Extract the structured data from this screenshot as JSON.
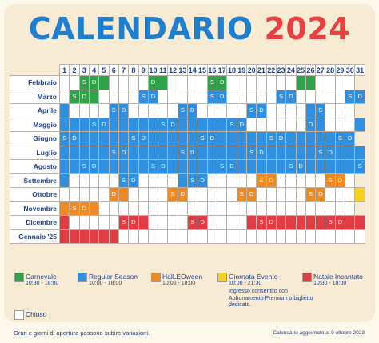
{
  "title": {
    "word": "CALENDARIO",
    "year": "2024"
  },
  "days": [
    "1",
    "2",
    "3",
    "4",
    "5",
    "6",
    "7",
    "8",
    "9",
    "10",
    "11",
    "12",
    "13",
    "14",
    "15",
    "16",
    "17",
    "18",
    "19",
    "20",
    "21",
    "22",
    "23",
    "24",
    "25",
    "26",
    "27",
    "28",
    "29",
    "30",
    "31"
  ],
  "months": [
    {
      "label": "Febbraio",
      "cells": "wwgggwwwwggwwwwggwwwwwwwggwwwwx",
      "sd": [
        3,
        9,
        16,
        23
      ]
    },
    {
      "label": "Marzo",
      "cells": "wgggwwwwbbwwwwwbbwwwwwbbwwwwwbb",
      "sd": [
        2,
        9,
        16,
        23,
        30
      ]
    },
    {
      "label": "Aprile",
      "cells": "bwwwwbbwwwwwbbwwwwwbbwwwwbbwwwx",
      "sd": [
        6,
        13,
        20,
        27
      ]
    },
    {
      "label": "Maggio",
      "cells": "bbbbbbbbbbbbbbbbbbbwwwwwwbbwwwb",
      "sd": [
        4,
        11,
        18,
        25
      ]
    },
    {
      "label": "Giugno",
      "cells": "bbbbbbbbbbbbbbbbbbbbbbbbbbbbbbx",
      "sd": [
        1,
        8,
        15,
        22,
        29
      ]
    },
    {
      "label": "Luglio",
      "cells": "bbbbbbbbbbbbbbbbbbbbbbbbbbbbbbb",
      "sd": [
        6,
        13,
        20,
        27
      ]
    },
    {
      "label": "Agosto",
      "cells": "bbbbbbbbbbbbbbbbbbbbbbbbbbbbbbb",
      "sd": [
        3,
        10,
        17,
        24,
        31
      ]
    },
    {
      "label": "Settembre",
      "cells": "bwwwwwbbwwwwbbbwwwwwoowwwwwoowx",
      "sd": [
        7,
        14,
        21,
        28
      ]
    },
    {
      "label": "Ottobre",
      "cells": "wwwwwoowwwwoowwwwwoowwwwwoowwwy",
      "sd": [
        5,
        12,
        19,
        26
      ]
    },
    {
      "label": "Novembre",
      "cells": "oooowwwwwwwwwwwwwwwwwwwwwwwwwwx",
      "sd": [
        2,
        9,
        16,
        23,
        30
      ]
    },
    {
      "label": "Dicembre",
      "cells": "rwwwwwrrrwwwwrrwwwwrrrrrrrrrrrr",
      "sd": [
        7,
        14,
        21,
        28
      ]
    },
    {
      "label": "Gennaio '25",
      "cells": "rrrrrrwwwwwwwwwwwwwwwwwwwwwwwww",
      "sd": []
    }
  ],
  "sd_text": {
    "s": "S",
    "d": "D"
  },
  "legend": [
    {
      "name": "Carnevale",
      "hours": "10:30 - 18:00",
      "note": "",
      "color": "#2fa24a"
    },
    {
      "name": "Regular Season",
      "hours": "10:00 - 18:00",
      "note": "",
      "color": "#2f8fe0"
    },
    {
      "name": "HalLEOween",
      "hours": "10:00 - 18:00",
      "note": "",
      "color": "#ef8a22"
    },
    {
      "name": "Giornata Evento",
      "hours": "10:00 - 21:30",
      "note": "Ingresso consentito con Abbonamento Premium o biglietto dedicato.",
      "color": "#f7d21c"
    },
    {
      "name": "Natale Incantato",
      "hours": "10:30 - 18:00",
      "note": "",
      "color": "#e23b43"
    }
  ],
  "closed_label": "Chiuso",
  "footer": {
    "left": "Orari e giorni di apertura possono subire variazioni.",
    "right": "Calendario aggiornato al 9 ottobre 2023"
  }
}
